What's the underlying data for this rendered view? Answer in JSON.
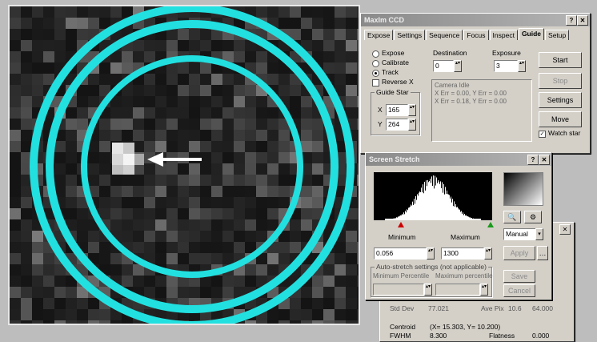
{
  "guide_window": {
    "title": "MaxIm CCD",
    "tabs": [
      "Expose",
      "Settings",
      "Sequence",
      "Focus",
      "Inspect",
      "Guide",
      "Setup"
    ],
    "active_tab": "Guide",
    "mode_options": [
      "Expose",
      "Calibrate",
      "Track"
    ],
    "selected_mode": "Track",
    "reverse_x_label": "Reverse X",
    "star_group_label": "Guide Star",
    "star_x_label": "X",
    "star_x_value": "165",
    "star_y_label": "Y",
    "star_y_value": "264",
    "destination_label": "Destination",
    "destination_value": "0",
    "exposure_label": "Exposure",
    "exposure_value": "3",
    "readout_lines": [
      "Camera Idle",
      "X Err = 0.00, Y Err = 0.00",
      "X Err = 0.18, Y Err = 0.00"
    ],
    "buttons": {
      "start": "Start",
      "stop": "Stop",
      "settings": "Settings",
      "move": "Move"
    },
    "watch_star_label": "Watch star"
  },
  "screen_stretch": {
    "title": "Screen Stretch",
    "minimum_label": "Minimum",
    "minimum_value": "0.056",
    "maximum_label": "Maximum",
    "maximum_value": "1300",
    "stretch_mode": "Manual",
    "apply_label": "Apply",
    "auto_settings_label": "Auto-stretch settings (not applicable)",
    "min_percentile_label": "Minimum Percentile",
    "max_percentile_label": "Maximum percentile",
    "save_label": "Save",
    "cancel_label": "Cancel"
  },
  "info_window": {
    "row1": [
      "Std Dev",
      "77.021",
      "Ave Pix",
      "10.6",
      "64.000"
    ],
    "centroid_label": "Centroid",
    "centroid_value": "(X= 15.303, Y= 10.200)",
    "fwhm_label": "FWHM",
    "fwhm_value": "8.300",
    "flatness_label": "Flatness",
    "flatness_value": "0.000"
  },
  "colors": {
    "ring": "#22e0e0",
    "arrow": "#ffffff"
  }
}
